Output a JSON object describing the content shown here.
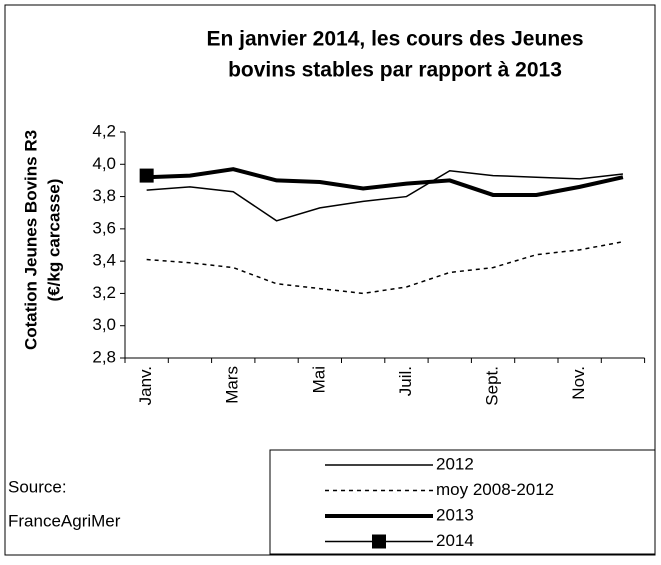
{
  "chart_data": {
    "type": "line",
    "title": [
      "En janvier 2014, les cours des Jeunes",
      "bovins stables par rapport à 2013"
    ],
    "y_label": [
      "Cotation Jeunes Bovins R3",
      "(€/kg carcasse)"
    ],
    "source": [
      "Source:",
      "FranceAgriMer"
    ],
    "categories": [
      "Janv.",
      null,
      "Mars",
      null,
      "Mai",
      null,
      "Juil.",
      null,
      "Sept.",
      null,
      "Nov.",
      null
    ],
    "ylim": [
      2.8,
      4.2
    ],
    "yticks": [
      {
        "value": 2.8,
        "label": "2,8"
      },
      {
        "value": 3.0,
        "label": "3,0"
      },
      {
        "value": 3.2,
        "label": "3,2"
      },
      {
        "value": 3.4,
        "label": "3,4"
      },
      {
        "value": 3.6,
        "label": "3,6"
      },
      {
        "value": 3.8,
        "label": "3,8"
      },
      {
        "value": 4.0,
        "label": "4,0"
      },
      {
        "value": 4.2,
        "label": "4,2"
      }
    ],
    "series": [
      {
        "name": "2012",
        "color": "#000000",
        "line_width": 1.5,
        "dash": "none",
        "values": [
          3.84,
          3.86,
          3.83,
          3.65,
          3.73,
          3.77,
          3.8,
          3.96,
          3.93,
          3.92,
          3.91,
          3.94
        ]
      },
      {
        "name": "moy 2008-2012",
        "color": "#000000",
        "line_width": 1.5,
        "dash": "4 4",
        "values": [
          3.41,
          3.39,
          3.36,
          3.26,
          3.23,
          3.2,
          3.24,
          3.33,
          3.36,
          3.44,
          3.47,
          3.52
        ]
      },
      {
        "name": "2013",
        "color": "#000000",
        "line_width": 4,
        "dash": "none",
        "values": [
          3.92,
          3.93,
          3.97,
          3.9,
          3.89,
          3.85,
          3.88,
          3.9,
          3.81,
          3.81,
          3.86,
          3.92
        ]
      },
      {
        "name": "2014",
        "color": "#000000",
        "line_width": 1.5,
        "dash": "none",
        "marker": "square",
        "values": [
          3.93,
          null,
          null,
          null,
          null,
          null,
          null,
          null,
          null,
          null,
          null,
          null
        ]
      }
    ]
  }
}
